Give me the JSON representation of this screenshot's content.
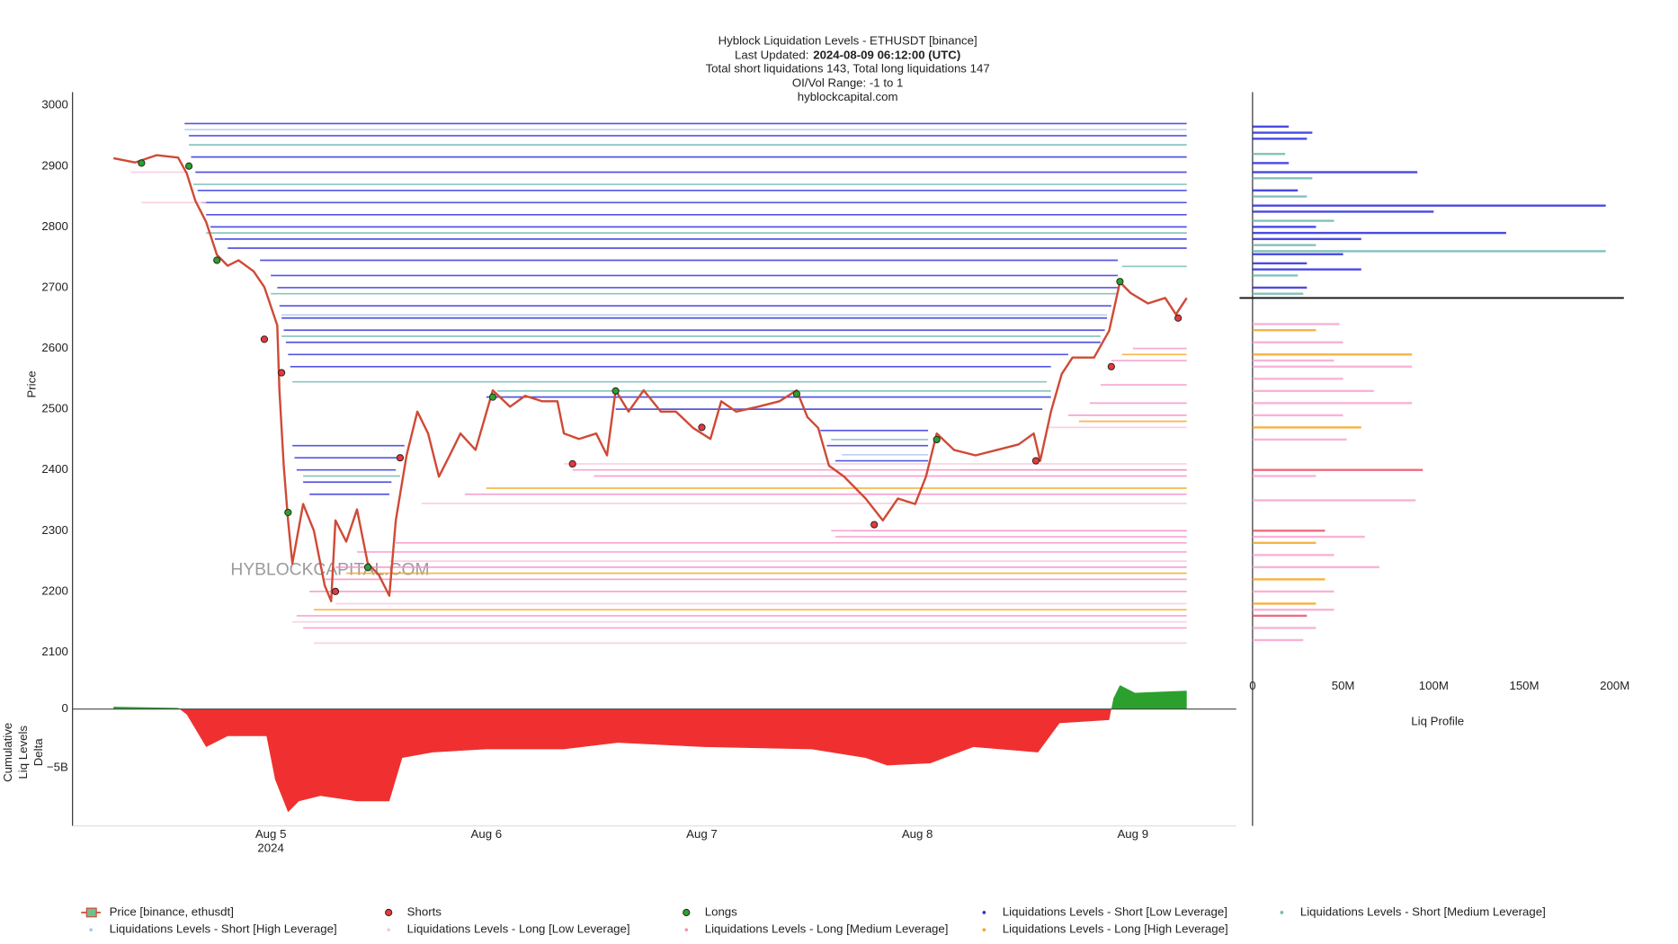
{
  "chart_data": {
    "type": "line",
    "title": "Hyblock Liquidation Levels - ETHUSDT [binance]",
    "last_updated_label": "Last Updated:",
    "last_updated": "2024-08-09 06:12:00 (UTC)",
    "subtitle_lines": [
      "Total short liquidations 143, Total long liquidations 147",
      "OI/Vol Range: -1 to 1",
      "hyblockcapital.com"
    ],
    "watermark": "HYBLOCKCAPITAL.COM",
    "ylabel": "Price",
    "xlim": [
      4.08,
      9.48
    ],
    "xticks": [
      {
        "value": 5,
        "label": "Aug 5"
      },
      {
        "value": 6,
        "label": "Aug 6"
      },
      {
        "value": 7,
        "label": "Aug 7"
      },
      {
        "value": 8,
        "label": "Aug 8"
      },
      {
        "value": 9,
        "label": "Aug 9"
      }
    ],
    "x_year": "2024",
    "ylim": [
      2060,
      3020
    ],
    "yticks": [
      2100,
      2200,
      2300,
      2400,
      2500,
      2600,
      2700,
      2800,
      2900,
      3000
    ],
    "series": [
      {
        "name": "Price [binance, ethusdt]",
        "kind": "line",
        "color": "#cf4a36",
        "legend_fill": "#6fbf8f",
        "x": [
          4.27,
          4.37,
          4.47,
          4.57,
          4.61,
          4.65,
          4.7,
          4.75,
          4.8,
          4.85,
          4.92,
          4.97,
          5.03,
          5.04,
          5.06,
          5.08,
          5.1,
          5.15,
          5.2,
          5.25,
          5.28,
          5.3,
          5.35,
          5.4,
          5.45,
          5.5,
          5.55,
          5.58,
          5.63,
          5.68,
          5.73,
          5.78,
          5.83,
          5.88,
          5.95,
          6.03,
          6.11,
          6.18,
          6.26,
          6.33,
          6.36,
          6.43,
          6.51,
          6.56,
          6.6,
          6.66,
          6.73,
          6.81,
          6.88,
          6.96,
          7.04,
          7.09,
          7.16,
          7.26,
          7.36,
          7.44,
          7.49,
          7.54,
          7.59,
          7.66,
          7.76,
          7.84,
          7.91,
          7.99,
          8.04,
          8.09,
          8.17,
          8.27,
          8.37,
          8.47,
          8.54,
          8.57,
          8.62,
          8.67,
          8.72,
          8.82,
          8.89,
          8.94,
          8.99,
          9.07,
          9.15,
          9.2,
          9.25
        ],
        "values": [
          2913,
          2906,
          2918,
          2914,
          2888,
          2843,
          2808,
          2754,
          2736,
          2745,
          2727,
          2701,
          2638,
          2531,
          2407,
          2317,
          2246,
          2344,
          2300,
          2210,
          2184,
          2317,
          2282,
          2335,
          2246,
          2228,
          2193,
          2317,
          2424,
          2496,
          2460,
          2389,
          2424,
          2460,
          2433,
          2531,
          2504,
          2522,
          2513,
          2513,
          2460,
          2451,
          2460,
          2424,
          2531,
          2496,
          2531,
          2496,
          2496,
          2469,
          2451,
          2513,
          2496,
          2504,
          2513,
          2531,
          2487,
          2469,
          2407,
          2389,
          2353,
          2317,
          2353,
          2344,
          2389,
          2460,
          2433,
          2424,
          2433,
          2442,
          2460,
          2415,
          2496,
          2558,
          2585,
          2585,
          2629,
          2709,
          2691,
          2674,
          2683,
          2656,
          2683
        ]
      },
      {
        "name": "Shorts",
        "kind": "marker",
        "color": "#e8383d",
        "x": [
          4.97,
          5.05,
          5.3,
          5.6,
          6.4,
          7.0,
          7.8,
          8.55,
          8.9,
          9.21
        ],
        "values": [
          2615,
          2560,
          2200,
          2420,
          2410,
          2470,
          2310,
          2415,
          2570,
          2650
        ]
      },
      {
        "name": "Longs",
        "kind": "marker",
        "color": "#2ca02c",
        "x": [
          4.4,
          4.62,
          4.75,
          5.08,
          5.45,
          6.03,
          6.6,
          7.44,
          8.09,
          8.94
        ],
        "values": [
          2905,
          2900,
          2745,
          2330,
          2240,
          2520,
          2530,
          2525,
          2450,
          2710
        ]
      },
      {
        "name": "Liquidations Levels - Short [Low Leverage]",
        "kind": "level",
        "color": "#2b2bdd",
        "x": [
          4.6,
          4.62,
          4.63,
          4.65,
          4.66,
          4.68,
          4.7,
          4.72,
          4.74,
          4.8,
          4.95,
          5.0,
          5.03,
          5.04,
          5.05,
          5.06,
          5.07,
          5.08,
          5.09,
          5.1,
          5.11,
          5.12,
          5.15,
          5.18,
          6.0,
          6.6,
          7.55,
          7.58,
          7.62
        ],
        "x_end": [
          9.25,
          9.25,
          9.25,
          9.25,
          9.25,
          9.25,
          9.25,
          9.25,
          9.25,
          9.25,
          8.93,
          8.93,
          8.93,
          8.9,
          8.88,
          8.87,
          8.85,
          8.7,
          8.62,
          5.62,
          5.6,
          5.58,
          5.56,
          5.55,
          8.62,
          8.58,
          8.05,
          8.05,
          8.05
        ],
        "values": [
          2970,
          2950,
          2915,
          2890,
          2860,
          2840,
          2820,
          2800,
          2780,
          2765,
          2745,
          2720,
          2700,
          2670,
          2650,
          2630,
          2610,
          2590,
          2570,
          2440,
          2420,
          2400,
          2380,
          2360,
          2520,
          2500,
          2465,
          2440,
          2415
        ]
      },
      {
        "name": "Liquidations Levels - Short [Medium Leverage]",
        "kind": "level",
        "color": "#6fb7b0",
        "x": [
          4.62,
          4.64,
          4.7,
          5.0,
          5.05,
          5.1,
          5.15,
          6.05,
          7.6,
          8.95
        ],
        "x_end": [
          9.25,
          9.25,
          9.25,
          8.93,
          8.85,
          8.6,
          5.6,
          8.62,
          8.05,
          9.25
        ],
        "values": [
          2935,
          2870,
          2790,
          2690,
          2620,
          2545,
          2390,
          2530,
          2450,
          2735
        ]
      },
      {
        "name": "Liquidations Levels - Short [High Leverage]",
        "kind": "level",
        "color": "#a7c7f0",
        "x": [
          4.6,
          5.05,
          7.65
        ],
        "x_end": [
          9.25,
          8.88,
          8.05
        ],
        "values": [
          2960,
          2655,
          2425
        ]
      },
      {
        "name": "Liquidations Levels - Long [Low Leverage]",
        "kind": "level",
        "color": "#f7c6dc",
        "x": [
          4.35,
          4.4,
          5.1,
          5.2,
          5.3,
          5.55,
          5.7,
          6.36,
          7.7,
          8.6
        ],
        "x_end": [
          4.62,
          4.7,
          9.25,
          9.25,
          9.25,
          9.25,
          9.25,
          9.25,
          9.25,
          9.25
        ],
        "values": [
          2890,
          2840,
          2150,
          2115,
          2180,
          2250,
          2345,
          2410,
          2300,
          2470
        ]
      },
      {
        "name": "Liquidations Levels - Long [Medium Leverage]",
        "kind": "level",
        "color": "#f58fc5",
        "x": [
          5.12,
          5.15,
          5.18,
          5.25,
          5.3,
          5.4,
          5.58,
          7.6,
          7.62,
          5.9,
          6.4,
          6.5,
          8.2,
          8.7,
          8.8,
          8.85,
          8.9,
          9.0
        ],
        "x_end": [
          9.25,
          9.25,
          9.25,
          9.25,
          9.25,
          9.25,
          9.25,
          9.25,
          9.25,
          9.25,
          9.25,
          9.25,
          9.25,
          9.25,
          9.25,
          9.25,
          9.25,
          9.25
        ],
        "values": [
          2160,
          2140,
          2200,
          2220,
          2240,
          2265,
          2280,
          2300,
          2290,
          2360,
          2400,
          2390,
          2400,
          2490,
          2510,
          2540,
          2580,
          2600
        ]
      },
      {
        "name": "Liquidations Levels - Long [High Leverage]",
        "kind": "level",
        "color": "#f5a623",
        "x": [
          5.2,
          5.35,
          6.0,
          8.75,
          8.95
        ],
        "x_end": [
          9.25,
          9.25,
          9.25,
          9.25,
          9.25
        ],
        "values": [
          2170,
          2230,
          2370,
          2480,
          2590
        ]
      }
    ],
    "delta": {
      "ylabel_lines": [
        "Cumulative",
        "Liq Levels",
        "Delta"
      ],
      "ylim": [
        -9.7,
        2.5
      ],
      "yticks": [
        0,
        {
          "value": -5,
          "label": "−5B"
        }
      ],
      "positive_color": "#2ca02c",
      "negative_color": "#f03030",
      "x": [
        4.27,
        4.57,
        4.61,
        4.7,
        4.8,
        4.98,
        5.02,
        5.08,
        5.13,
        5.23,
        5.4,
        5.55,
        5.61,
        5.75,
        6.0,
        6.36,
        6.61,
        7.01,
        7.51,
        7.76,
        7.86,
        8.06,
        8.26,
        8.56,
        8.66,
        8.89,
        8.91,
        8.94,
        9.01,
        9.25
      ],
      "values": [
        0.2,
        0.1,
        -0.46,
        -3.24,
        -2.31,
        -2.31,
        -6.02,
        -8.8,
        -7.87,
        -7.41,
        -7.87,
        -7.87,
        -4.17,
        -3.7,
        -3.43,
        -3.43,
        -2.87,
        -3.24,
        -3.43,
        -4.17,
        -4.81,
        -4.63,
        -3.24,
        -3.7,
        -1.2,
        -0.93,
        0.93,
        2.04,
        1.39,
        1.57
      ]
    },
    "profile": {
      "xlabel": "Liq Profile",
      "xlim": [
        0,
        205
      ],
      "xticks": [
        0,
        {
          "value": 50,
          "label": "50M"
        },
        {
          "value": 100,
          "label": "100M"
        },
        {
          "value": 150,
          "label": "150M"
        },
        {
          "value": 200,
          "label": "200M"
        }
      ],
      "prices": [
        2965,
        2955,
        2945,
        2920,
        2905,
        2890,
        2880,
        2860,
        2850,
        2835,
        2825,
        2810,
        2800,
        2790,
        2780,
        2770,
        2760,
        2755,
        2740,
        2730,
        2720,
        2700,
        2690,
        2640,
        2630,
        2610,
        2590,
        2580,
        2570,
        2550,
        2530,
        2510,
        2490,
        2470,
        2450,
        2400,
        2390,
        2350,
        2300,
        2290,
        2280,
        2260,
        2240,
        2220,
        2200,
        2180,
        2170,
        2160,
        2140,
        2120
      ],
      "values": [
        20,
        33,
        30,
        18,
        20,
        91,
        33,
        25,
        30,
        195,
        100,
        45,
        35,
        140,
        60,
        35,
        195,
        50,
        30,
        60,
        25,
        30,
        28,
        48,
        35,
        50,
        88,
        45,
        88,
        50,
        67,
        88,
        50,
        60,
        52,
        94,
        35,
        90,
        40,
        62,
        35,
        45,
        70,
        40,
        45,
        35,
        45,
        30,
        35,
        28
      ],
      "colors": [
        "#2b2bdd",
        "#2b2bdd",
        "#2b2bdd",
        "#6fb7b0",
        "#2b2bdd",
        "#2b2bdd",
        "#6fb7b0",
        "#2b2bdd",
        "#6fb7b0",
        "#2b2bdd",
        "#2b2bdd",
        "#6fb7b0",
        "#2b2bdd",
        "#2b2bdd",
        "#2b2bdd",
        "#6fb7b0",
        "#6fb7b0",
        "#2b2bdd",
        "#2b2bdd",
        "#2b2bdd",
        "#6fb7b0",
        "#2b2bdd",
        "#6fb7b0",
        "#f7a6cf",
        "#f5a623",
        "#f7a6cf",
        "#f5a623",
        "#f7a6cf",
        "#f7a6cf",
        "#f7a6cf",
        "#f7a6cf",
        "#f7a6cf",
        "#f7a6cf",
        "#f5a623",
        "#f7a6cf",
        "#e8546b",
        "#f7a6cf",
        "#f7a6cf",
        "#e8546b",
        "#f7a6cf",
        "#f5a623",
        "#f7a6cf",
        "#f7a6cf",
        "#f5a623",
        "#f7a6cf",
        "#f5a623",
        "#f7a6cf",
        "#e8546b",
        "#f7a6cf",
        "#f7a6cf"
      ]
    }
  }
}
